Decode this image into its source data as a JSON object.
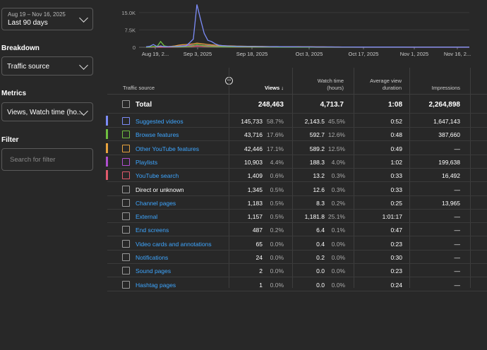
{
  "date_range": {
    "range": "Aug 19 – Nov 16, 2025",
    "label": "Last 90 days"
  },
  "breakdown": {
    "label": "Breakdown",
    "value": "Traffic source"
  },
  "metrics": {
    "label": "Metrics",
    "value": "Views, Watch time (ho..."
  },
  "filter": {
    "label": "Filter",
    "placeholder": "Search for filter"
  },
  "chart_data": {
    "type": "line",
    "y_ticks": [
      "15.0K",
      "7.5K",
      "0"
    ],
    "ylim": [
      0,
      18000
    ],
    "x_ticks": [
      "Aug 19, 2...",
      "Sep 3, 2025",
      "Sep 18, 2025",
      "Oct 3, 2025",
      "Oct 17, 2025",
      "Nov 1, 2025",
      "Nov 16, 2..."
    ],
    "series": [
      {
        "color": "#7c8cf8",
        "values": [
          200,
          400,
          1200,
          300,
          600,
          200,
          250,
          300,
          350,
          400,
          500,
          600,
          2000,
          3500,
          18500,
          12000,
          6000,
          3000,
          2500,
          1500,
          900,
          700,
          600,
          500,
          450,
          400,
          380,
          350,
          330,
          320,
          300,
          290,
          280,
          270,
          260,
          250,
          240,
          230,
          220,
          210,
          200,
          200,
          190,
          180,
          180,
          170,
          160,
          160,
          150,
          150,
          140,
          140,
          130,
          130,
          120,
          120,
          110,
          110,
          100,
          100,
          100,
          100,
          90,
          90,
          90,
          90,
          80,
          80,
          80,
          80,
          80,
          80,
          70,
          70,
          70,
          70,
          70,
          60,
          60,
          60,
          60,
          60,
          60,
          60,
          60,
          60,
          60,
          60,
          60,
          60
        ]
      },
      {
        "color": "#6fbf40",
        "values": [
          0,
          100,
          300,
          200,
          2500,
          600,
          300,
          200,
          150,
          150,
          200,
          300,
          400,
          800,
          1200,
          900,
          700,
          500,
          400,
          300,
          250,
          200,
          180,
          160,
          150,
          140,
          130,
          120,
          110,
          100,
          100,
          90,
          90,
          80,
          80,
          80,
          70,
          70,
          70,
          60,
          60,
          60,
          60,
          50,
          50,
          50,
          50,
          50,
          40,
          40,
          40,
          40,
          40,
          40,
          40,
          30,
          30,
          30,
          30,
          30,
          30,
          30,
          30,
          30,
          30,
          30,
          30,
          20,
          20,
          20,
          20,
          20,
          20,
          20,
          20,
          20,
          20,
          20,
          20,
          20,
          20,
          20,
          20,
          20,
          20,
          20,
          20,
          20,
          20,
          20
        ]
      },
      {
        "color": "#e8a33d",
        "values": [
          100,
          150,
          200,
          250,
          300,
          350,
          300,
          400,
          600,
          900,
          1100,
          1200,
          1300,
          1500,
          1800,
          1600,
          1400,
          1200,
          1000,
          900,
          800,
          700,
          650,
          600,
          550,
          500,
          480,
          460,
          440,
          420,
          400,
          380,
          360,
          340,
          320,
          300,
          290,
          280,
          270,
          260,
          250,
          240,
          230,
          220,
          210,
          200,
          200,
          190,
          180,
          170,
          160,
          150,
          150,
          140,
          130,
          130,
          120,
          120,
          110,
          110,
          100,
          100,
          100,
          90,
          90,
          90,
          80,
          80,
          80,
          70,
          70,
          70,
          60,
          60,
          60,
          50,
          50,
          50,
          50,
          40,
          40,
          40,
          40,
          40,
          30,
          30,
          30,
          30,
          30,
          30
        ]
      },
      {
        "color": "#b04fd0",
        "values": [
          50,
          60,
          80,
          100,
          150,
          200,
          250,
          300,
          400,
          500,
          600,
          700,
          800,
          900,
          1000,
          900,
          800,
          700,
          600,
          500,
          450,
          400,
          350,
          300,
          280,
          260,
          240,
          220,
          200,
          190,
          180,
          170,
          160,
          150,
          140,
          130,
          120,
          110,
          100,
          90,
          90,
          80,
          80,
          70,
          70,
          60,
          60,
          50,
          50,
          50,
          40,
          40,
          40,
          30,
          30,
          30,
          30,
          20,
          20,
          20,
          20,
          20,
          20,
          20,
          20,
          20,
          20,
          20,
          20,
          20,
          20,
          20,
          20,
          20,
          20,
          20,
          20,
          20,
          20,
          20,
          20,
          20,
          20,
          20,
          20,
          20,
          20,
          20,
          20,
          20
        ]
      },
      {
        "color": "#e05a6b",
        "values": [
          10,
          10,
          20,
          20,
          30,
          40,
          50,
          60,
          80,
          100,
          150,
          200,
          300,
          400,
          500,
          450,
          400,
          350,
          300,
          250,
          200,
          180,
          160,
          140,
          120,
          100,
          90,
          80,
          70,
          60,
          50,
          40,
          30,
          30,
          30,
          20,
          20,
          20,
          20,
          20,
          20,
          20,
          20,
          20,
          20,
          20,
          20,
          10,
          10,
          10,
          10,
          10,
          10,
          10,
          10,
          10,
          10,
          10,
          10,
          10,
          10,
          10,
          10,
          10,
          10,
          10,
          10,
          10,
          10,
          10,
          10,
          10,
          10,
          10,
          10,
          10,
          10,
          10,
          10,
          10,
          10,
          10,
          10,
          10,
          10,
          10,
          10,
          10,
          10,
          10
        ]
      }
    ]
  },
  "table": {
    "headers": {
      "source": "Traffic source",
      "views": "Views ↓",
      "watch_time_1": "Watch time",
      "watch_time_2": "(hours)",
      "avd_1": "Average view",
      "avd_2": "duration",
      "impressions": "Impressions",
      "add_column": "+"
    },
    "total": {
      "name": "Total",
      "views": "248,463",
      "watch": "4,713.7",
      "avd": "1:08",
      "impressions": "2,264,898"
    },
    "rows": [
      {
        "color": "#7c8cf8",
        "name": "Suggested videos",
        "link": true,
        "views": "145,733",
        "views_pct": "58.7%",
        "watch": "2,143.5",
        "watch_pct": "45.5%",
        "avd": "0:52",
        "impressions": "1,647,143"
      },
      {
        "color": "#6fbf40",
        "name": "Browse features",
        "link": true,
        "views": "43,716",
        "views_pct": "17.6%",
        "watch": "592.7",
        "watch_pct": "12.6%",
        "avd": "0:48",
        "impressions": "387,660"
      },
      {
        "color": "#e8a33d",
        "name": "Other YouTube features",
        "link": true,
        "views": "42,446",
        "views_pct": "17.1%",
        "watch": "589.2",
        "watch_pct": "12.5%",
        "avd": "0:49",
        "impressions": "—"
      },
      {
        "color": "#b04fd0",
        "name": "Playlists",
        "link": true,
        "views": "10,903",
        "views_pct": "4.4%",
        "watch": "188.3",
        "watch_pct": "4.0%",
        "avd": "1:02",
        "impressions": "199,638"
      },
      {
        "color": "#e05a6b",
        "name": "YouTube search",
        "link": true,
        "views": "1,409",
        "views_pct": "0.6%",
        "watch": "13.2",
        "watch_pct": "0.3%",
        "avd": "0:33",
        "impressions": "16,492"
      },
      {
        "color": "",
        "name": "Direct or unknown",
        "link": false,
        "views": "1,345",
        "views_pct": "0.5%",
        "watch": "12.6",
        "watch_pct": "0.3%",
        "avd": "0:33",
        "impressions": "—"
      },
      {
        "color": "",
        "name": "Channel pages",
        "link": true,
        "views": "1,183",
        "views_pct": "0.5%",
        "watch": "8.3",
        "watch_pct": "0.2%",
        "avd": "0:25",
        "impressions": "13,965"
      },
      {
        "color": "",
        "name": "External",
        "link": true,
        "views": "1,157",
        "views_pct": "0.5%",
        "watch": "1,181.8",
        "watch_pct": "25.1%",
        "avd": "1:01:17",
        "impressions": "—"
      },
      {
        "color": "",
        "name": "End screens",
        "link": true,
        "views": "487",
        "views_pct": "0.2%",
        "watch": "6.4",
        "watch_pct": "0.1%",
        "avd": "0:47",
        "impressions": "—"
      },
      {
        "color": "",
        "name": "Video cards and annotations",
        "link": true,
        "views": "65",
        "views_pct": "0.0%",
        "watch": "0.4",
        "watch_pct": "0.0%",
        "avd": "0:23",
        "impressions": "—"
      },
      {
        "color": "",
        "name": "Notifications",
        "link": true,
        "views": "24",
        "views_pct": "0.0%",
        "watch": "0.2",
        "watch_pct": "0.0%",
        "avd": "0:30",
        "impressions": "—"
      },
      {
        "color": "",
        "name": "Sound pages",
        "link": true,
        "views": "2",
        "views_pct": "0.0%",
        "watch": "0.0",
        "watch_pct": "0.0%",
        "avd": "0:23",
        "impressions": "—"
      },
      {
        "color": "",
        "name": "Hashtag pages",
        "link": true,
        "views": "1",
        "views_pct": "0.0%",
        "watch": "0.0",
        "watch_pct": "0.0%",
        "avd": "0:24",
        "impressions": "—"
      }
    ]
  }
}
